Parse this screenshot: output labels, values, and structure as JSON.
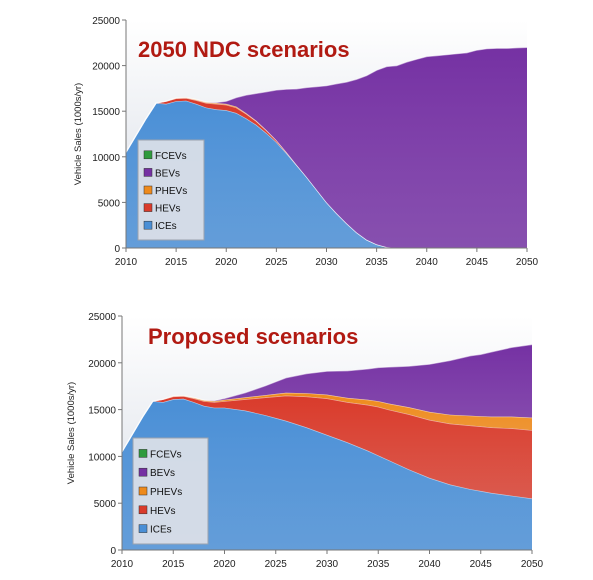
{
  "chart_data": [
    {
      "type": "area",
      "stacked": true,
      "title": "2050 NDC scenarios",
      "xlabel": "",
      "ylabel": "Vehicle Sales (1000s/yr)",
      "xlim": [
        2010,
        2050
      ],
      "ylim": [
        0,
        25000
      ],
      "x_ticks": [
        2010,
        2015,
        2020,
        2025,
        2030,
        2035,
        2040,
        2045,
        2050
      ],
      "y_ticks": [
        0,
        5000,
        10000,
        15000,
        20000,
        25000
      ],
      "legend_position": "left",
      "x": [
        2010,
        2012,
        2013,
        2014,
        2015,
        2016,
        2017,
        2018,
        2019,
        2020,
        2021,
        2022,
        2023,
        2024,
        2025,
        2026,
        2027,
        2028,
        2029,
        2030,
        2031,
        2032,
        2033,
        2034,
        2035,
        2036,
        2037,
        2038,
        2039,
        2040,
        2041,
        2042,
        2043,
        2044,
        2045,
        2046,
        2047,
        2048,
        2049,
        2050
      ],
      "series": [
        {
          "name": "ICEs",
          "color": "#4a8fd6",
          "values": [
            10500,
            14200,
            15900,
            15800,
            16100,
            16150,
            15800,
            15400,
            15200,
            15100,
            14800,
            14200,
            13500,
            12600,
            11600,
            10400,
            9100,
            7800,
            6400,
            5000,
            3800,
            2700,
            1700,
            900,
            400,
            100,
            0,
            0,
            0,
            0,
            0,
            0,
            0,
            0,
            0,
            0,
            0,
            0,
            0,
            0
          ]
        },
        {
          "name": "HEVs",
          "color": "#d93b2b",
          "values": [
            0,
            0,
            0,
            300,
            300,
            300,
            400,
            500,
            600,
            600,
            600,
            500,
            400,
            300,
            200,
            100,
            50,
            0,
            0,
            0,
            0,
            0,
            0,
            0,
            0,
            0,
            0,
            0,
            0,
            0,
            0,
            0,
            0,
            0,
            0,
            0,
            0,
            0,
            0,
            0
          ]
        },
        {
          "name": "PHEVs",
          "color": "#ee8a1c",
          "values": [
            0,
            0,
            0,
            0,
            50,
            50,
            80,
            100,
            100,
            100,
            100,
            80,
            50,
            30,
            20,
            10,
            0,
            0,
            0,
            0,
            0,
            0,
            0,
            0,
            0,
            0,
            0,
            0,
            0,
            0,
            0,
            0,
            0,
            0,
            0,
            0,
            0,
            0,
            0,
            0
          ]
        },
        {
          "name": "BEVs",
          "color": "#7531a3",
          "values": [
            0,
            0,
            0,
            0,
            0,
            0,
            0,
            0,
            50,
            300,
            1000,
            2000,
            3000,
            4200,
            5500,
            6900,
            8300,
            9800,
            11300,
            12800,
            14200,
            15500,
            16800,
            18000,
            19100,
            19800,
            20000,
            20400,
            20700,
            21000,
            21100,
            21200,
            21300,
            21400,
            21700,
            21850,
            21900,
            21900,
            21950,
            22000
          ]
        },
        {
          "name": "FCEVs",
          "color": "#2f9b3e",
          "values": [
            0,
            0,
            0,
            0,
            0,
            0,
            0,
            0,
            0,
            0,
            0,
            0,
            0,
            0,
            0,
            0,
            0,
            0,
            0,
            0,
            0,
            0,
            0,
            0,
            0,
            0,
            0,
            0,
            0,
            0,
            0,
            0,
            0,
            0,
            0,
            0,
            0,
            0,
            0,
            0
          ]
        }
      ]
    },
    {
      "type": "area",
      "stacked": true,
      "title": "Proposed scenarios",
      "xlabel": "",
      "ylabel": "Vehicle Sales (1000s/yr)",
      "xlim": [
        2010,
        2050
      ],
      "ylim": [
        0,
        25000
      ],
      "x_ticks": [
        2010,
        2015,
        2020,
        2025,
        2030,
        2035,
        2040,
        2045,
        2050
      ],
      "y_ticks": [
        0,
        5000,
        10000,
        15000,
        20000,
        25000
      ],
      "legend_position": "left",
      "x": [
        2010,
        2012,
        2013,
        2014,
        2015,
        2016,
        2017,
        2018,
        2019,
        2020,
        2022,
        2024,
        2025,
        2026,
        2028,
        2030,
        2032,
        2034,
        2035,
        2036,
        2038,
        2040,
        2042,
        2044,
        2045,
        2046,
        2048,
        2050
      ],
      "series": [
        {
          "name": "ICEs",
          "color": "#4a8fd6",
          "values": [
            10500,
            14200,
            15900,
            15800,
            16100,
            16150,
            15800,
            15400,
            15200,
            15200,
            14900,
            14400,
            14100,
            13800,
            13100,
            12300,
            11500,
            10600,
            10100,
            9600,
            8600,
            7700,
            7000,
            6500,
            6300,
            6100,
            5800,
            5500
          ]
        },
        {
          "name": "HEVs",
          "color": "#d93b2b",
          "values": [
            0,
            0,
            0,
            300,
            300,
            300,
            400,
            500,
            600,
            700,
            1200,
            1900,
            2300,
            2700,
            3300,
            3900,
            4300,
            4900,
            5200,
            5400,
            5900,
            6200,
            6500,
            6800,
            6900,
            7000,
            7200,
            7300
          ]
        },
        {
          "name": "PHEVs",
          "color": "#ee8a1c",
          "values": [
            0,
            0,
            0,
            0,
            50,
            50,
            80,
            100,
            100,
            150,
            200,
            250,
            280,
            300,
            350,
            400,
            450,
            550,
            600,
            650,
            750,
            850,
            950,
            1050,
            1100,
            1150,
            1250,
            1350
          ]
        },
        {
          "name": "BEVs",
          "color": "#7531a3",
          "values": [
            0,
            0,
            0,
            0,
            0,
            0,
            0,
            0,
            50,
            150,
            500,
            1000,
            1300,
            1600,
            2100,
            2500,
            2900,
            3300,
            3600,
            3900,
            4400,
            5100,
            5800,
            6400,
            6600,
            6900,
            7400,
            7800
          ]
        },
        {
          "name": "FCEVs",
          "color": "#2f9b3e",
          "values": [
            0,
            0,
            0,
            0,
            0,
            0,
            0,
            0,
            0,
            0,
            0,
            0,
            0,
            0,
            0,
            0,
            0,
            0,
            0,
            0,
            0,
            0,
            0,
            0,
            0,
            0,
            0,
            0
          ]
        }
      ]
    }
  ],
  "legend_order": [
    "FCEVs",
    "BEVs",
    "PHEVs",
    "HEVs",
    "ICEs"
  ]
}
